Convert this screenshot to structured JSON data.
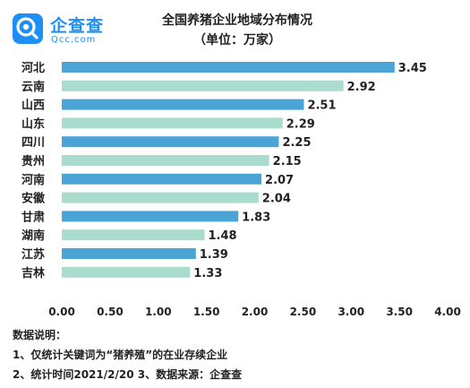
{
  "logo": {
    "name_cn": "企查查",
    "name_en": "Qcc.com",
    "brand_color": "#1e8ff5"
  },
  "header": {
    "title": "全国养猪企业地域分布情况",
    "subtitle": "（单位：万家）"
  },
  "chart_data": {
    "type": "bar",
    "orientation": "horizontal",
    "title": "全国养猪企业地域分布情况",
    "unit": "万家",
    "categories": [
      "河北",
      "云南",
      "山西",
      "山东",
      "四川",
      "贵州",
      "河南",
      "安徽",
      "甘肃",
      "湖南",
      "江苏",
      "吉林"
    ],
    "values": [
      3.45,
      2.92,
      2.51,
      2.29,
      2.25,
      2.15,
      2.07,
      2.04,
      1.83,
      1.48,
      1.39,
      1.33
    ],
    "value_labels": [
      "3.45",
      "2.92",
      "2.51",
      "2.29",
      "2.25",
      "2.15",
      "2.07",
      "2.04",
      "1.83",
      "1.48",
      "1.39",
      "1.33"
    ],
    "bar_colors": [
      "#4aa5d6",
      "#a9dccd",
      "#4aa5d6",
      "#a9dccd",
      "#4aa5d6",
      "#a9dccd",
      "#4aa5d6",
      "#a9dccd",
      "#4aa5d6",
      "#a9dccd",
      "#4aa5d6",
      "#a9dccd"
    ],
    "xlim": [
      0,
      4
    ],
    "xticks": [
      "0.00",
      "0.50",
      "1.00",
      "1.50",
      "2.00",
      "2.50",
      "3.00",
      "3.50",
      "4.00"
    ],
    "grid": false,
    "legend": "none"
  },
  "notes": {
    "heading": "数据说明：",
    "line1": "1、仅统计关键词为“猪养殖”的在业存续企业",
    "line2": "2、统计时间2021/2/20   3、数据来源：企查查"
  }
}
